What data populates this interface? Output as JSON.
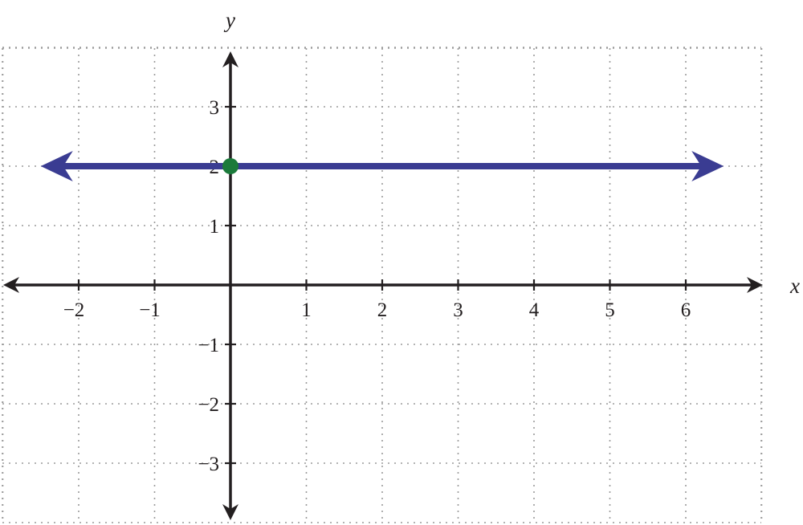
{
  "chart_data": {
    "type": "line",
    "xlabel": "x",
    "ylabel": "y",
    "xlim": [
      -3,
      7
    ],
    "ylim": [
      -4,
      4
    ],
    "x_ticks": [
      -2,
      -1,
      1,
      2,
      3,
      4,
      5,
      6
    ],
    "y_ticks": [
      -3,
      -2,
      -1,
      1,
      2,
      3
    ],
    "x_tick_labels": [
      "−2",
      "−1",
      "1",
      "2",
      "3",
      "4",
      "5",
      "6"
    ],
    "y_tick_labels": [
      "−3",
      "−2",
      "−1",
      "1",
      "2",
      "3"
    ],
    "grid": true,
    "series": [
      {
        "kind": "line",
        "x": [
          -2.5,
          6.5
        ],
        "y": [
          2,
          2
        ],
        "arrows": "both",
        "color": "#3a3c92"
      }
    ],
    "points": [
      {
        "x": 0,
        "y": 2,
        "color": "#1b7a3a"
      }
    ],
    "colors": {
      "axis": "#231f20",
      "grid": "#9a9a9a"
    }
  }
}
